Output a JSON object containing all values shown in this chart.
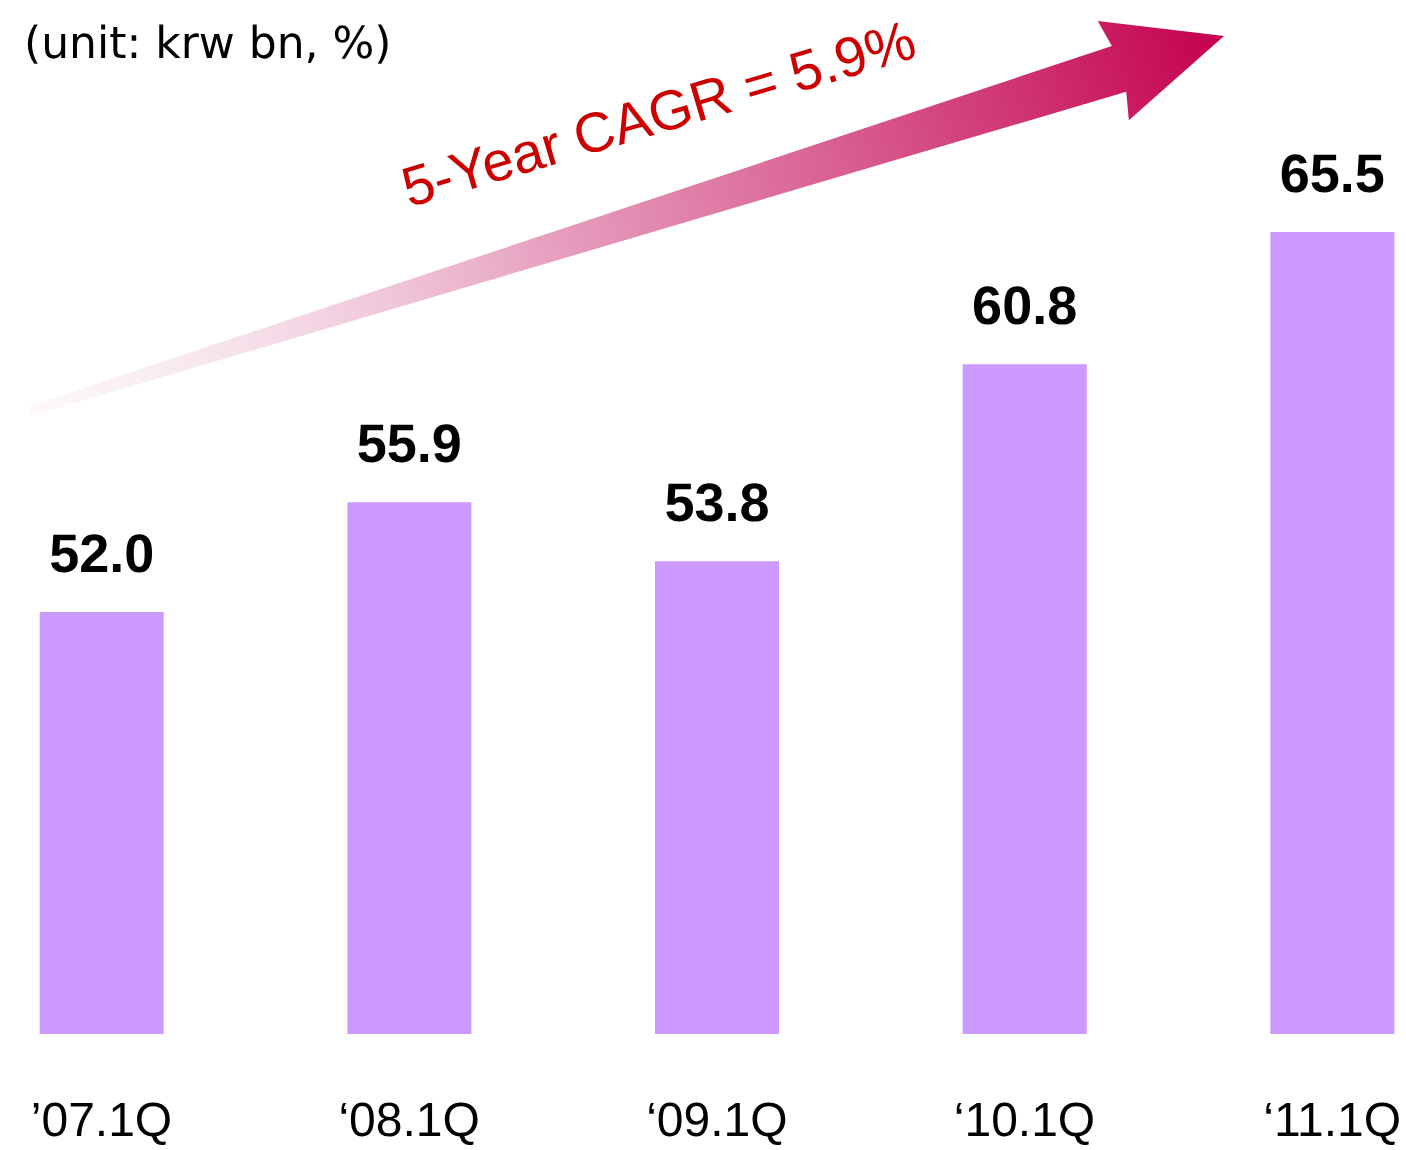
{
  "chart_data": {
    "type": "bar",
    "categories": [
      "’07.1Q",
      "‘08.1Q",
      "‘09.1Q",
      "‘10.1Q",
      "‘11.1Q"
    ],
    "values": [
      52.0,
      55.9,
      53.8,
      60.8,
      65.5
    ],
    "color": "#cc99ff",
    "value_labels": [
      "52.0",
      "55.9",
      "53.8",
      "60.8",
      "65.5"
    ],
    "ylim": [
      37,
      65.5
    ],
    "tick_labels": "x",
    "annotations": [
      "(unit: krw bn, %)",
      "5-Year CAGR = 5.9%"
    ]
  }
}
